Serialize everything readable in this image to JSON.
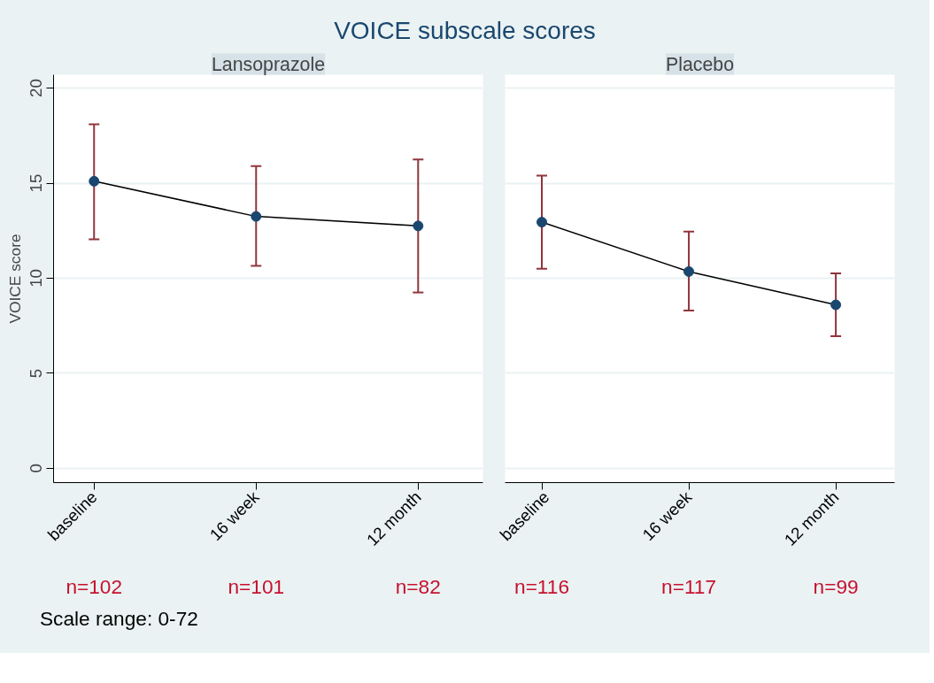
{
  "chart_data": [
    {
      "type": "line",
      "title": "VOICE subscale scores",
      "subtitle": "Lansoprazole",
      "ylabel": "VOICE score",
      "categories": [
        "baseline",
        "16 week",
        "12 month"
      ],
      "series": [
        {
          "color": "#1a476f",
          "values": [
            15.1,
            13.25,
            12.75
          ],
          "errors": [
            [
              12.05,
              18.1
            ],
            [
              10.65,
              15.9
            ],
            [
              9.25,
              16.25
            ]
          ]
        }
      ],
      "ylim": [
        -0.75,
        20.7
      ],
      "yticks": [
        0,
        5,
        10,
        15,
        20
      ],
      "grid": "y",
      "marker": "circle",
      "line_style": "solid",
      "annotations": [
        "n=102",
        "n=101",
        "n=82",
        "Scale range: 0-72"
      ]
    },
    {
      "type": "line",
      "subtitle": "Placebo",
      "categories": [
        "baseline",
        "16 week",
        "12 month"
      ],
      "series": [
        {
          "color": "#1a476f",
          "values": [
            12.95,
            10.35,
            8.6
          ],
          "errors": [
            [
              10.5,
              15.4
            ],
            [
              8.3,
              12.45
            ],
            [
              6.95,
              10.25
            ]
          ]
        }
      ],
      "ylim": [
        -0.75,
        20.7
      ],
      "yticks": [
        0,
        5,
        10,
        15,
        20
      ],
      "grid": "y",
      "marker": "circle",
      "line_style": "solid",
      "tick_labels": "x",
      "annotations": [
        "n=116",
        "n=117",
        "n=99"
      ]
    }
  ]
}
